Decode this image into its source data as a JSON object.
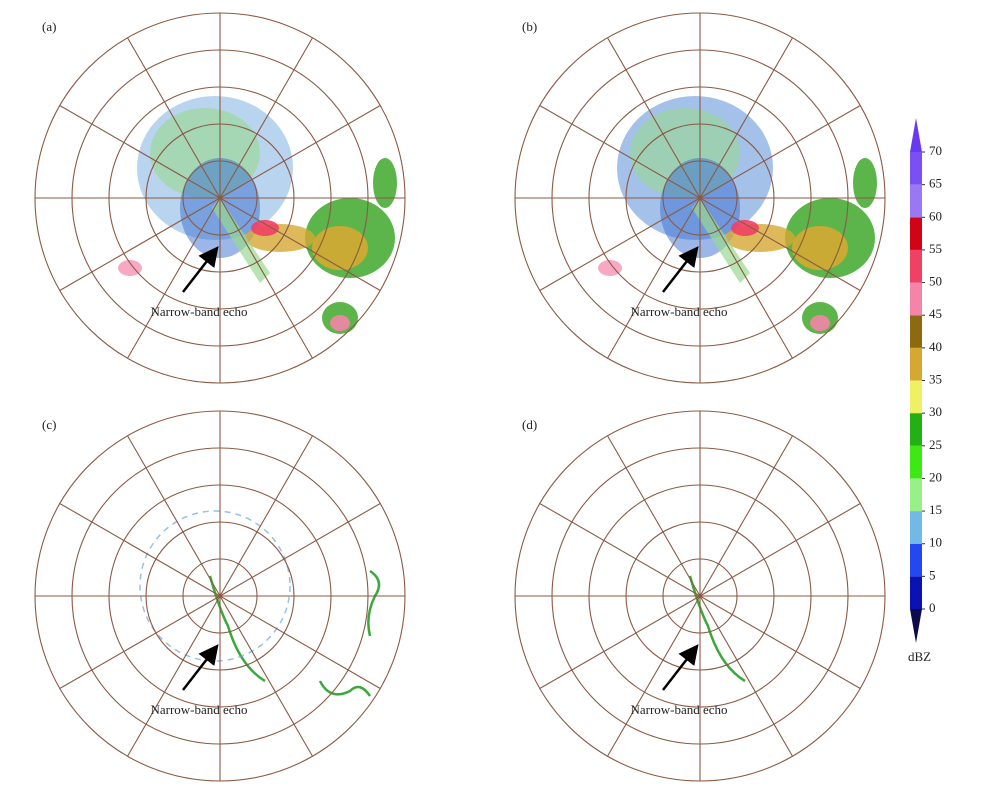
{
  "panels": [
    {
      "label": "(a)",
      "annotation": "Narrow-band echo"
    },
    {
      "label": "(b)",
      "annotation": "Narrow-band echo"
    },
    {
      "label": "(c)",
      "annotation": "Narrow-band echo"
    },
    {
      "label": "(d)",
      "annotation": "Narrow-band echo"
    }
  ],
  "colorbar": {
    "unit": "dBZ",
    "ticks": [
      0,
      5,
      10,
      15,
      20,
      25,
      30,
      35,
      40,
      45,
      50,
      55,
      60,
      65,
      70
    ],
    "colors": [
      "#0a12b4",
      "#2448f0",
      "#74b8e6",
      "#98f088",
      "#3ee814",
      "#22b014",
      "#f0f064",
      "#d4a832",
      "#8c6a10",
      "#f484a8",
      "#f04064",
      "#d00414",
      "#9a78f4",
      "#7a50f4"
    ],
    "under": "#0c0c4c",
    "over": "#6a38f0"
  }
}
